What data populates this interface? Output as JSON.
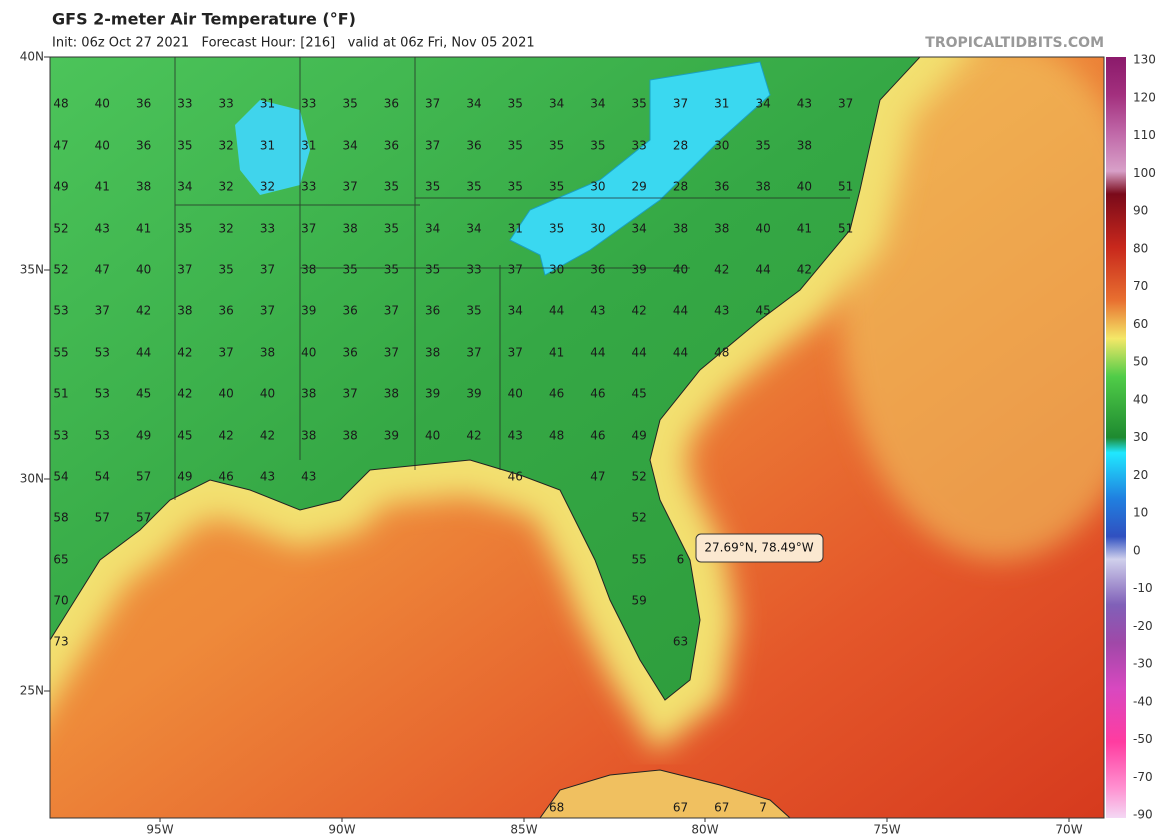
{
  "header": {
    "title": "GFS 2-meter Air Temperature (°F)",
    "subtitle": "Init: 06z Oct 27 2021   Forecast Hour: [216]   valid at 06z Fri, Nov 05 2021",
    "watermark": "TROPICALTIDBITS.COM"
  },
  "map": {
    "lat_labels": [
      "40N",
      "35N",
      "30N",
      "25N"
    ],
    "lon_labels": [
      "95W",
      "90W",
      "85W",
      "80W",
      "75W",
      "70W"
    ],
    "stations": [
      [
        48,
        40,
        36,
        33,
        33,
        31,
        33,
        35,
        36,
        37,
        34,
        35,
        34,
        34,
        35,
        37,
        31,
        34,
        43,
        37
      ],
      [
        47,
        40,
        36,
        35,
        32,
        31,
        31,
        34,
        36,
        37,
        36,
        35,
        35,
        35,
        33,
        28,
        30,
        35,
        38
      ],
      [
        49,
        41,
        38,
        34,
        32,
        32,
        33,
        37,
        35,
        35,
        35,
        35,
        35,
        30,
        29,
        28,
        36,
        38,
        40,
        51
      ],
      [
        52,
        43,
        41,
        35,
        32,
        33,
        37,
        38,
        35,
        34,
        34,
        31,
        35,
        30,
        34,
        38,
        38,
        40,
        41,
        51
      ],
      [
        52,
        47,
        40,
        37,
        35,
        37,
        38,
        35,
        35,
        35,
        33,
        37,
        30,
        36,
        39,
        40,
        42,
        44,
        42
      ],
      [
        53,
        37,
        42,
        38,
        36,
        37,
        39,
        36,
        37,
        36,
        35,
        34,
        44,
        43,
        42,
        44,
        43,
        45
      ],
      [
        55,
        53,
        44,
        42,
        37,
        38,
        40,
        36,
        37,
        38,
        37,
        37,
        41,
        44,
        44,
        44,
        48
      ],
      [
        51,
        53,
        45,
        42,
        40,
        40,
        38,
        37,
        38,
        39,
        39,
        40,
        46,
        46,
        45
      ],
      [
        53,
        53,
        49,
        45,
        42,
        42,
        38,
        38,
        39,
        40,
        42,
        43,
        48,
        46,
        49
      ],
      [
        54,
        54,
        57,
        49,
        46,
        43,
        43,
        46,
        47,
        52
      ],
      [
        58,
        57,
        57,
        52
      ],
      [
        65,
        55,
        6
      ],
      [
        70,
        59
      ],
      [
        73,
        63
      ],
      [
        68,
        67,
        67,
        7
      ]
    ],
    "tooltip": "27.69°N, 78.49°W"
  },
  "colorbar": {
    "labels": [
      130,
      120,
      110,
      100,
      90,
      80,
      70,
      60,
      50,
      40,
      30,
      20,
      10,
      0,
      -10,
      -20,
      -30,
      -40,
      -50,
      -70,
      -90
    ]
  }
}
